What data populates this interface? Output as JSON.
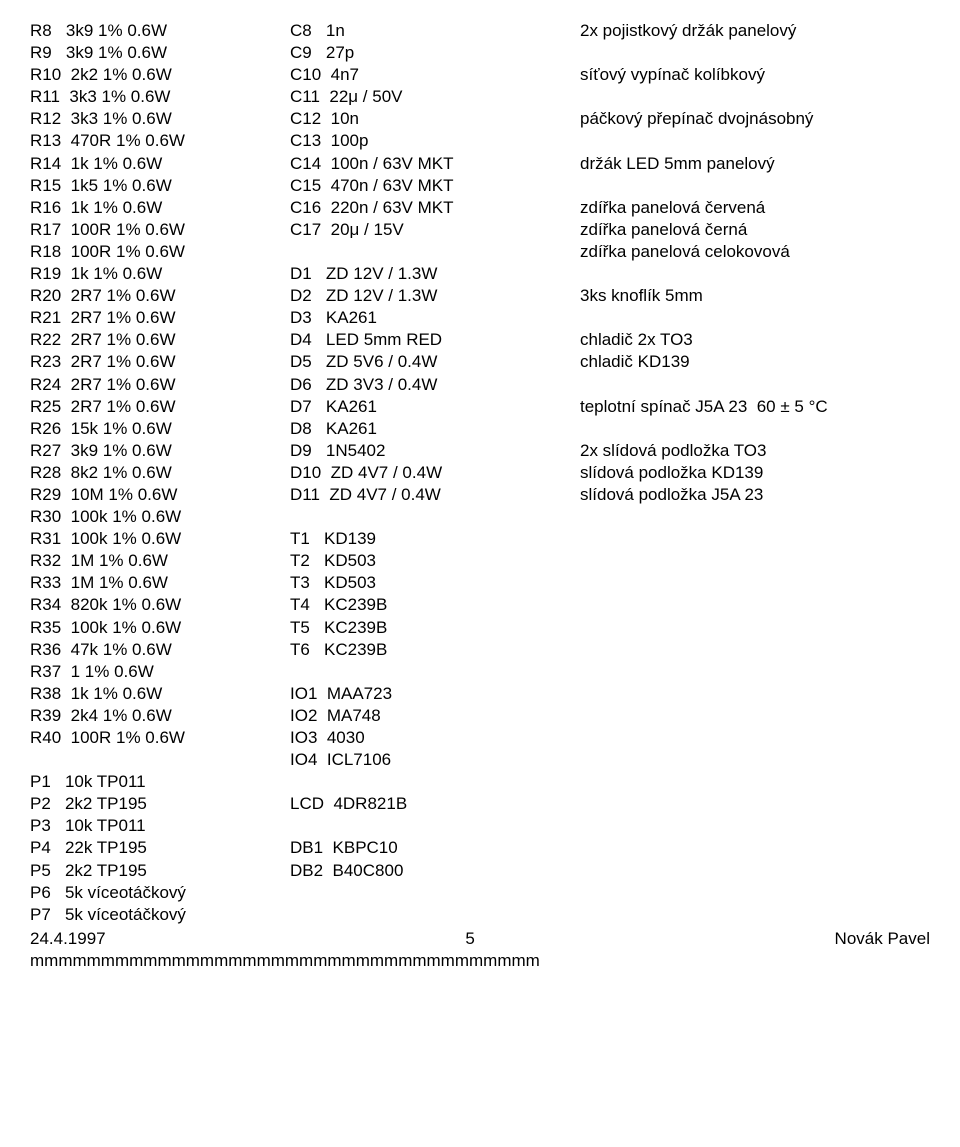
{
  "col1": [
    "R8   3k9 1% 0.6W",
    "R9   3k9 1% 0.6W",
    "R10  2k2 1% 0.6W",
    "R11  3k3 1% 0.6W",
    "R12  3k3 1% 0.6W",
    "R13  470R 1% 0.6W",
    "R14  1k 1% 0.6W",
    "R15  1k5 1% 0.6W",
    "R16  1k 1% 0.6W",
    "R17  100R 1% 0.6W",
    "R18  100R 1% 0.6W",
    "R19  1k 1% 0.6W",
    "R20  2R7 1% 0.6W",
    "R21  2R7 1% 0.6W",
    "R22  2R7 1% 0.6W",
    "R23  2R7 1% 0.6W",
    "R24  2R7 1% 0.6W",
    "R25  2R7 1% 0.6W",
    "R26  15k 1% 0.6W",
    "R27  3k9 1% 0.6W",
    "R28  8k2 1% 0.6W",
    "R29  10M 1% 0.6W",
    "R30  100k 1% 0.6W",
    "R31  100k 1% 0.6W",
    "R32  1M 1% 0.6W",
    "R33  1M 1% 0.6W",
    "R34  820k 1% 0.6W",
    "R35  100k 1% 0.6W",
    "R36  47k 1% 0.6W",
    "R37  1 1% 0.6W",
    "R38  1k 1% 0.6W",
    "R39  2k4 1% 0.6W",
    "R40  100R 1% 0.6W",
    "",
    "P1   10k TP011",
    "P2   2k2 TP195",
    "P3   10k TP011",
    "P4   22k TP195",
    "P5   2k2 TP195",
    "P6   5k víceotáčkový",
    "P7   5k víceotáčkový"
  ],
  "col2": [
    "C8   1n",
    "C9   27p",
    "C10  4n7",
    "C11  22μ / 50V",
    "C12  10n",
    "C13  100p",
    "C14  100n / 63V MKT",
    "C15  470n / 63V MKT",
    "C16  220n / 63V MKT",
    "C17  20μ / 15V",
    "",
    "D1   ZD 12V / 1.3W",
    "D2   ZD 12V / 1.3W",
    "D3   KA261",
    "D4   LED 5mm RED",
    "D5   ZD 5V6 / 0.4W",
    "D6   ZD 3V3 / 0.4W",
    "D7   KA261",
    "D8   KA261",
    "D9   1N5402",
    "D10  ZD 4V7 / 0.4W",
    "D11  ZD 4V7 / 0.4W",
    "",
    "T1   KD139",
    "T2   KD503",
    "T3   KD503",
    "T4   KC239B",
    "T5   KC239B",
    "T6   KC239B",
    "",
    "IO1  MAA723",
    "IO2  MA748",
    "IO3  4030",
    "IO4  ICL7106",
    "",
    "LCD  4DR821B",
    "",
    "DB1  KBPC10",
    "DB2  B40C800"
  ],
  "col3": [
    "2x pojistkový držák panelový",
    "",
    "síťový vypínač kolíbkový",
    "",
    "páčkový přepínač dvojnásobný",
    "",
    "držák LED 5mm panelový",
    "",
    "zdířka panelová červená",
    "zdířka panelová černá",
    "zdířka panelová celokovová",
    "",
    "3ks knoflík 5mm",
    "",
    "chladič 2x TO3",
    "chladič KD139",
    "",
    "teplotní spínač J5A 23  60 ± 5 °C",
    "",
    "2x slídová podložka TO3",
    "slídová podložka KD139",
    "slídová podložka J5A 23"
  ],
  "footer": {
    "date": "24.4.1997",
    "page": "5",
    "author": "Novák  Pavel",
    "mline": "mmmmmmmmmmmmmmmmmmmmmmmmmmmmmmmmmmmm"
  }
}
